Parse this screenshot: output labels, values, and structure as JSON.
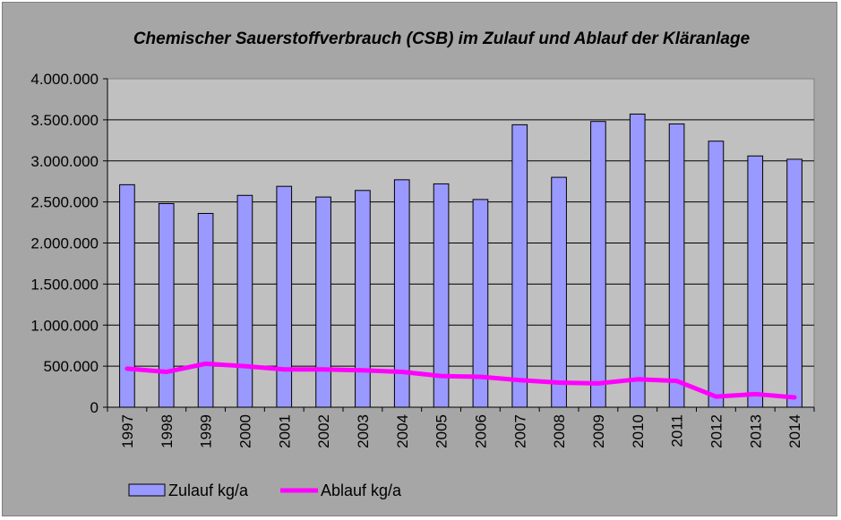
{
  "chart_data": {
    "type": "bar",
    "title": "Chemischer Sauerstoffverbrauch (CSB) im Zulauf und Ablauf der Kläranlage",
    "categories": [
      "1997",
      "1998",
      "1999",
      "2000",
      "2001",
      "2002",
      "2003",
      "2004",
      "2005",
      "2006",
      "2007",
      "2008",
      "2009",
      "2010",
      "2011",
      "2012",
      "2013",
      "2014"
    ],
    "series": [
      {
        "name": "Zulauf kg/a",
        "kind": "bar",
        "color": "#9999ff",
        "values": [
          2710000,
          2480000,
          2360000,
          2580000,
          2690000,
          2560000,
          2640000,
          2770000,
          2720000,
          2530000,
          3440000,
          2800000,
          3480000,
          3570000,
          3450000,
          3240000,
          3060000,
          3020000
        ]
      },
      {
        "name": "Ablauf kg/a",
        "kind": "line",
        "color": "#ff00ff",
        "values": [
          470000,
          430000,
          530000,
          500000,
          460000,
          460000,
          450000,
          430000,
          380000,
          370000,
          330000,
          300000,
          290000,
          340000,
          320000,
          130000,
          160000,
          120000
        ]
      }
    ],
    "ylim": [
      0,
      4000000
    ],
    "yticks": [
      0,
      500000,
      1000000,
      1500000,
      2000000,
      2500000,
      3000000,
      3500000,
      4000000
    ],
    "ytick_labels": [
      "0",
      "500.000",
      "1.000.000",
      "1.500.000",
      "2.000.000",
      "2.500.000",
      "3.000.000",
      "3.500.000",
      "4.000.000"
    ],
    "xlabel": "",
    "ylabel": "",
    "grid": true,
    "legend": "bottom-left",
    "plot_background": "#c0c0c0",
    "chart_background": "#a6a6a6"
  }
}
